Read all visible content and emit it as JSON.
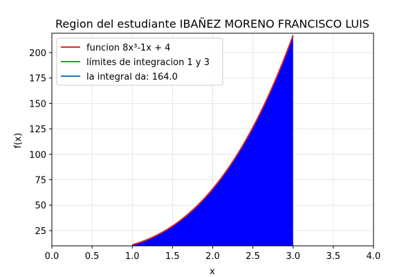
{
  "chart_data": {
    "type": "area",
    "title": "Region del estudiante IBAÑEZ MORENO FRANCISCO LUIS",
    "xlabel": "x",
    "ylabel": "f(x)",
    "xlim": [
      0.0,
      4.0
    ],
    "ylim": [
      10,
      219
    ],
    "xticks": [
      "0.0",
      "0.5",
      "1.0",
      "1.5",
      "2.0",
      "2.5",
      "3.0",
      "3.5",
      "4.0"
    ],
    "yticks": [
      "25",
      "50",
      "75",
      "100",
      "125",
      "150",
      "175",
      "200"
    ],
    "grid": true,
    "legend_position": "top-left",
    "function": {
      "a3": 8,
      "a1": -1,
      "a0": 4
    },
    "domain": [
      1,
      3
    ],
    "fill": {
      "from": 1,
      "to": 3,
      "color": "#0000ff"
    },
    "series": [
      {
        "name": "funcion 8x³-1x + 4",
        "color": "#d62728"
      },
      {
        "name": "límites de integracion 1 y 3",
        "color": "#2ca02c"
      },
      {
        "name": "la integral da: 164.0",
        "color": "#1f77b4"
      }
    ]
  }
}
